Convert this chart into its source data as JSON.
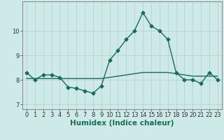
{
  "xlabel": "Humidex (Indice chaleur)",
  "x": [
    0,
    1,
    2,
    3,
    4,
    5,
    6,
    7,
    8,
    9,
    10,
    11,
    12,
    13,
    14,
    15,
    16,
    17,
    18,
    19,
    20,
    21,
    22,
    23
  ],
  "y_main": [
    8.3,
    8.0,
    8.2,
    8.2,
    8.1,
    7.7,
    7.65,
    7.55,
    7.45,
    7.75,
    8.8,
    9.2,
    9.65,
    10.0,
    10.75,
    10.2,
    10.0,
    9.65,
    8.3,
    8.0,
    8.0,
    7.85,
    8.3,
    8.0
  ],
  "y_trend": [
    8.05,
    8.05,
    8.05,
    8.05,
    8.05,
    8.05,
    8.05,
    8.05,
    8.05,
    8.05,
    8.1,
    8.15,
    8.2,
    8.25,
    8.3,
    8.3,
    8.3,
    8.3,
    8.25,
    8.2,
    8.15,
    8.15,
    8.15,
    8.15
  ],
  "line_color": "#1a6b5a",
  "background_color": "#ceeae8",
  "grid_color": "#b8ccc8",
  "ylim": [
    6.8,
    11.2
  ],
  "yticks": [
    7,
    8,
    9,
    10
  ],
  "xlim": [
    -0.5,
    23.5
  ],
  "marker": "D",
  "marker_size": 2.5,
  "line_width": 1.0,
  "tick_fontsize": 6.0,
  "xlabel_fontsize": 7.5
}
